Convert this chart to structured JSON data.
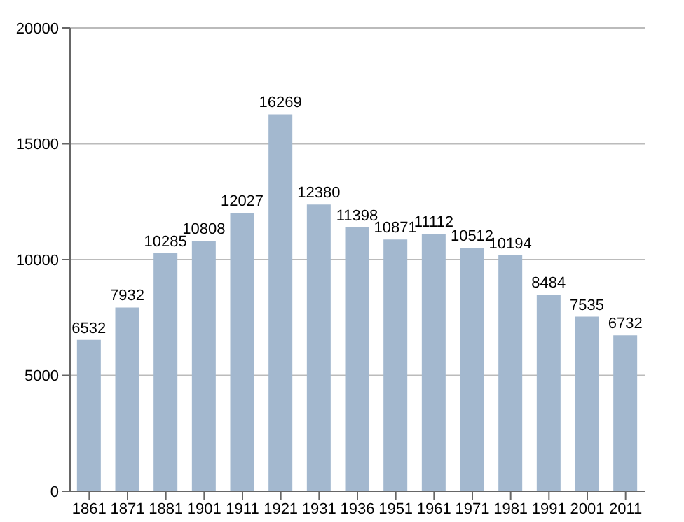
{
  "chart_data": {
    "type": "bar",
    "categories": [
      "1861",
      "1871",
      "1881",
      "1901",
      "1911",
      "1921",
      "1931",
      "1936",
      "1951",
      "1961",
      "1971",
      "1981",
      "1991",
      "2001",
      "2011"
    ],
    "values": [
      6532,
      7932,
      10285,
      10808,
      12027,
      16269,
      12380,
      11398,
      10871,
      11112,
      10512,
      10194,
      8484,
      7535,
      6732
    ],
    "color": "#a3b8cf",
    "ylim": [
      0,
      20000
    ],
    "yticks": [
      0,
      5000,
      10000,
      15000,
      20000
    ],
    "grid": "y",
    "data_labels": true
  }
}
